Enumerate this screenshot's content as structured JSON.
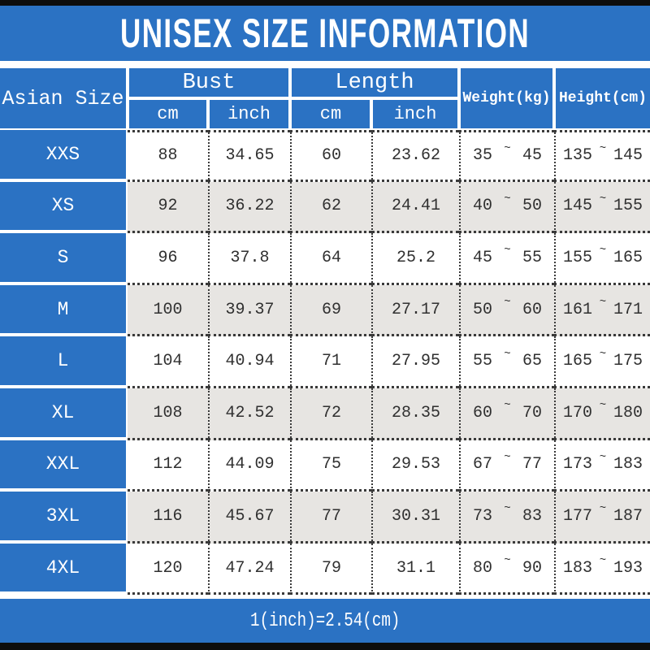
{
  "title": "UNISEX SIZE INFORMATION",
  "footer_note": "1(inch)=2.54(cm)",
  "colors": {
    "accent_blue": "#2B72C3",
    "row_alt_gray": "#E7E5E2",
    "frame_bar": "#0D0D0D"
  },
  "table": {
    "corner_header": "Asian Size",
    "groups": [
      {
        "label": "Bust",
        "subs": [
          "cm",
          "inch"
        ]
      },
      {
        "label": "Length",
        "subs": [
          "cm",
          "inch"
        ]
      }
    ],
    "range_headers": [
      "Weight(kg)",
      "Height(cm)"
    ],
    "tilde": "~",
    "rows": [
      {
        "size": "XXS",
        "bust_cm": "88",
        "bust_inch": "34.65",
        "length_cm": "60",
        "length_inch": "23.62",
        "weight_min": "35",
        "weight_max": "45",
        "height_min": "135",
        "height_max": "145"
      },
      {
        "size": "XS",
        "bust_cm": "92",
        "bust_inch": "36.22",
        "length_cm": "62",
        "length_inch": "24.41",
        "weight_min": "40",
        "weight_max": "50",
        "height_min": "145",
        "height_max": "155"
      },
      {
        "size": "S",
        "bust_cm": "96",
        "bust_inch": "37.8",
        "length_cm": "64",
        "length_inch": "25.2",
        "weight_min": "45",
        "weight_max": "55",
        "height_min": "155",
        "height_max": "165"
      },
      {
        "size": "M",
        "bust_cm": "100",
        "bust_inch": "39.37",
        "length_cm": "69",
        "length_inch": "27.17",
        "weight_min": "50",
        "weight_max": "60",
        "height_min": "161",
        "height_max": "171"
      },
      {
        "size": "L",
        "bust_cm": "104",
        "bust_inch": "40.94",
        "length_cm": "71",
        "length_inch": "27.95",
        "weight_min": "55",
        "weight_max": "65",
        "height_min": "165",
        "height_max": "175"
      },
      {
        "size": "XL",
        "bust_cm": "108",
        "bust_inch": "42.52",
        "length_cm": "72",
        "length_inch": "28.35",
        "weight_min": "60",
        "weight_max": "70",
        "height_min": "170",
        "height_max": "180"
      },
      {
        "size": "XXL",
        "bust_cm": "112",
        "bust_inch": "44.09",
        "length_cm": "75",
        "length_inch": "29.53",
        "weight_min": "67",
        "weight_max": "77",
        "height_min": "173",
        "height_max": "183"
      },
      {
        "size": "3XL",
        "bust_cm": "116",
        "bust_inch": "45.67",
        "length_cm": "77",
        "length_inch": "30.31",
        "weight_min": "73",
        "weight_max": "83",
        "height_min": "177",
        "height_max": "187"
      },
      {
        "size": "4XL",
        "bust_cm": "120",
        "bust_inch": "47.24",
        "length_cm": "79",
        "length_inch": "31.1",
        "weight_min": "80",
        "weight_max": "90",
        "height_min": "183",
        "height_max": "193"
      }
    ]
  }
}
